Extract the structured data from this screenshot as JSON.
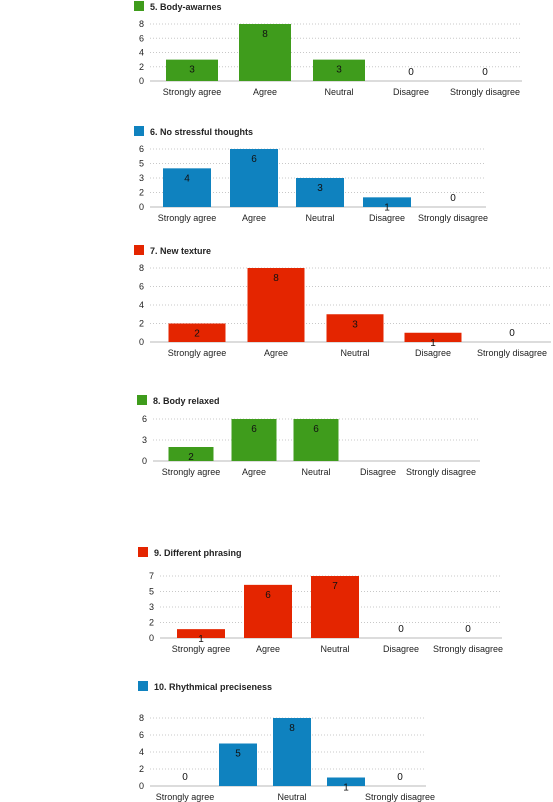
{
  "chart_data": [
    {
      "type": "bar",
      "title": "5. Body-awarnes",
      "color": "#3f9c1c",
      "categories": [
        "Strongly agree",
        "Agree",
        "Neutral",
        "Disagree",
        "Strongly disagree"
      ],
      "values": [
        3,
        8,
        3,
        0,
        0
      ],
      "ylim": [
        0,
        8
      ],
      "yticks": [
        "0",
        "2",
        "4",
        "6",
        "8"
      ],
      "grid": true
    },
    {
      "type": "bar",
      "title": "6. No stressful thoughts",
      "color": "#0f82bf",
      "categories": [
        "Strongly agree",
        "Agree",
        "Neutral",
        "Disagree",
        "Strongly disagree"
      ],
      "values": [
        4,
        6,
        3,
        1,
        0
      ],
      "ylim": [
        0,
        6
      ],
      "yticks": [
        "0",
        "2",
        "3",
        "5",
        "6"
      ],
      "grid": true
    },
    {
      "type": "bar",
      "title": "7. New texture",
      "color": "#e42500",
      "categories": [
        "Strongly agree",
        "Agree",
        "Neutral",
        "Disagree",
        "Strongly disagree"
      ],
      "values": [
        2,
        8,
        3,
        1,
        0
      ],
      "ylim": [
        0,
        8
      ],
      "yticks": [
        "0",
        "2",
        "4",
        "6",
        "8"
      ],
      "grid": true
    },
    {
      "type": "bar",
      "title": "8. Body relaxed",
      "color": "#3f9c1c",
      "categories": [
        "Strongly agree",
        "Agree",
        "Neutral",
        "Disagree",
        "Strongly disagree"
      ],
      "values": [
        2,
        6,
        6,
        null,
        null
      ],
      "ylim": [
        0,
        6
      ],
      "yticks": [
        "0",
        "3",
        "6"
      ],
      "grid": true
    },
    {
      "type": "bar",
      "title": "9. Different phrasing",
      "color": "#e42500",
      "categories": [
        "Strongly agree",
        "Agree",
        "Neutral",
        "Disagree",
        "Strongly disagree"
      ],
      "values": [
        1,
        6,
        7,
        0,
        0
      ],
      "ylim": [
        0,
        7
      ],
      "yticks": [
        "0",
        "2",
        "3",
        "5",
        "7"
      ],
      "grid": true
    },
    {
      "type": "bar",
      "title": "10. Rhythmical preciseness",
      "color": "#0f82bf",
      "categories": [
        "Strongly agree",
        "",
        "Neutral",
        "",
        "Strongly disagree"
      ],
      "values": [
        0,
        5,
        8,
        1,
        0
      ],
      "ylim": [
        0,
        8
      ],
      "yticks": [
        "0",
        "2",
        "4",
        "6",
        "8"
      ],
      "grid": true
    }
  ]
}
